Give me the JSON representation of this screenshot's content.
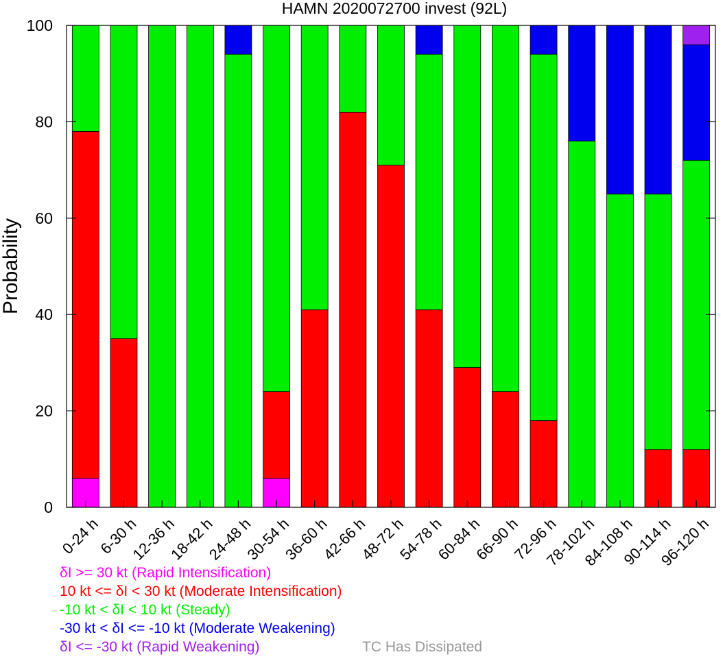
{
  "chart_data": {
    "type": "bar",
    "stacked": true,
    "title": "HAMN 2020072700 invest (92L)",
    "xlabel": "",
    "ylabel": "Probability",
    "ylim": [
      0,
      100
    ],
    "yticks": [
      0,
      20,
      40,
      60,
      80,
      100
    ],
    "grid": false,
    "categories": [
      "0-24 h",
      "6-30 h",
      "12-36 h",
      "18-42 h",
      "24-48 h",
      "30-54 h",
      "36-60 h",
      "42-66 h",
      "48-72 h",
      "54-78 h",
      "60-84 h",
      "66-90 h",
      "72-96 h",
      "78-102 h",
      "84-108 h",
      "90-114 h",
      "96-120 h"
    ],
    "series": [
      {
        "name": "δI >= 30 kt (Rapid Intensification)",
        "color": "#ff00ff",
        "values": [
          6,
          0,
          0,
          0,
          0,
          6,
          0,
          0,
          0,
          0,
          0,
          0,
          0,
          0,
          0,
          0,
          0
        ]
      },
      {
        "name": "10 kt <= δI < 30 kt (Moderate Intensification)",
        "color": "#ff0000",
        "values": [
          72,
          35,
          0,
          0,
          0,
          18,
          41,
          82,
          71,
          41,
          29,
          24,
          18,
          0,
          0,
          12,
          12
        ]
      },
      {
        "name": "-10 kt < δI < 10 kt (Steady)",
        "color": "#00ee00",
        "values": [
          22,
          65,
          100,
          100,
          94,
          76,
          59,
          18,
          29,
          53,
          71,
          76,
          76,
          76,
          65,
          53,
          60
        ]
      },
      {
        "name": "-30 kt < δI <= -10 kt (Moderate Weakening)",
        "color": "#0000ee",
        "values": [
          0,
          0,
          0,
          0,
          6,
          0,
          0,
          0,
          0,
          6,
          0,
          0,
          6,
          24,
          35,
          35,
          24
        ]
      },
      {
        "name": "δI <= -30 kt (Rapid Weakening)",
        "color": "#a020f0",
        "values": [
          0,
          0,
          0,
          0,
          0,
          0,
          0,
          0,
          0,
          0,
          0,
          0,
          0,
          0,
          0,
          0,
          4
        ]
      }
    ],
    "extra_legend": {
      "name": "TC Has Dissipated",
      "color": "#999999"
    }
  }
}
